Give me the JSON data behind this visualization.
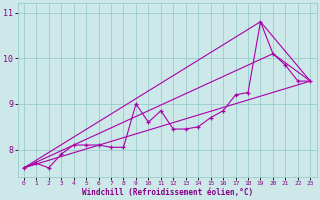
{
  "xlabel": "Windchill (Refroidissement éolien,°C)",
  "bg_color": "#cce8e8",
  "line_color": "#aa00aa",
  "grid_color": "#99cccc",
  "x_data": [
    0,
    1,
    2,
    3,
    4,
    5,
    6,
    7,
    8,
    9,
    10,
    11,
    12,
    13,
    14,
    15,
    16,
    17,
    18,
    19,
    20,
    21,
    22,
    23
  ],
  "y_data": [
    7.6,
    7.7,
    7.6,
    7.9,
    8.1,
    8.1,
    8.1,
    8.05,
    8.05,
    9.0,
    8.6,
    8.85,
    8.45,
    8.45,
    8.5,
    8.7,
    8.85,
    9.2,
    9.25,
    10.8,
    10.1,
    9.85,
    9.5,
    9.5
  ],
  "ylim": [
    7.4,
    11.2
  ],
  "xlim": [
    -0.5,
    23.5
  ],
  "yticks": [
    8,
    9,
    10,
    11
  ],
  "xticks": [
    0,
    1,
    2,
    3,
    4,
    5,
    6,
    7,
    8,
    9,
    10,
    11,
    12,
    13,
    14,
    15,
    16,
    17,
    18,
    19,
    20,
    21,
    22,
    23
  ],
  "line2_x": [
    0,
    23
  ],
  "line2_y": [
    7.6,
    9.5
  ],
  "line3_x": [
    0,
    19,
    23
  ],
  "line3_y": [
    7.6,
    10.8,
    9.5
  ],
  "line4_x": [
    0,
    20,
    23
  ],
  "line4_y": [
    7.6,
    10.1,
    9.5
  ]
}
